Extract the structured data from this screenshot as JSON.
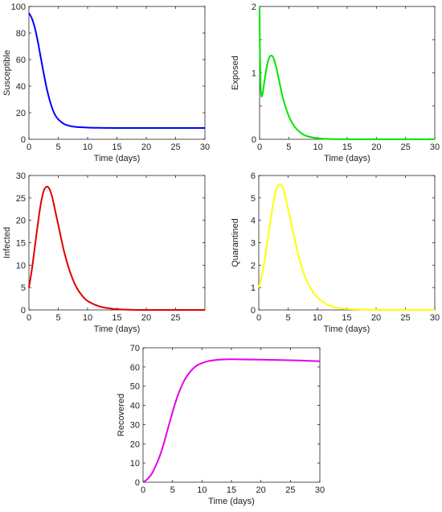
{
  "chart_data": [
    {
      "type": "line",
      "xlabel": "Time (days)",
      "ylabel": "Susceptible",
      "xlim": [
        0,
        30
      ],
      "ylim": [
        0,
        100
      ],
      "xticks": [
        0,
        5,
        10,
        15,
        20,
        25,
        30
      ],
      "yticks": [
        0,
        20,
        40,
        60,
        80,
        100
      ],
      "color": "#0000ff",
      "x": [
        0,
        0.5,
        1,
        1.5,
        2,
        2.5,
        3,
        3.5,
        4,
        4.5,
        5,
        6,
        7,
        8,
        9,
        10,
        12,
        15,
        20,
        25,
        30
      ],
      "values": [
        95,
        91,
        84,
        74,
        62,
        50,
        39,
        30,
        23,
        18,
        15,
        11.5,
        10,
        9.3,
        9,
        8.8,
        8.6,
        8.5,
        8.5,
        8.5,
        8.5
      ]
    },
    {
      "type": "line",
      "xlabel": "Time (days)",
      "ylabel": "Exposed",
      "xlim": [
        0,
        30
      ],
      "ylim": [
        0,
        2
      ],
      "xticks": [
        0,
        5,
        10,
        15,
        20,
        25,
        30
      ],
      "yticks": [
        0,
        0.5,
        1,
        1.5,
        2
      ],
      "ytick_labels": [
        "0",
        "",
        "1",
        "",
        "2"
      ],
      "color": "#00e600",
      "x": [
        0,
        0.05,
        0.15,
        0.3,
        0.5,
        0.8,
        1.2,
        1.6,
        2,
        2.4,
        2.8,
        3.3,
        4,
        5,
        6,
        7,
        8,
        10,
        12,
        15,
        20,
        30
      ],
      "values": [
        2.0,
        1.4,
        0.9,
        0.66,
        0.68,
        0.85,
        1.08,
        1.22,
        1.26,
        1.22,
        1.1,
        0.9,
        0.62,
        0.35,
        0.19,
        0.1,
        0.05,
        0.015,
        0.005,
        0.001,
        0,
        0
      ]
    },
    {
      "type": "line",
      "xlabel": "Time (days)",
      "ylabel": "Infected",
      "xlim": [
        0,
        30
      ],
      "ylim": [
        0,
        30
      ],
      "xticks": [
        0,
        5,
        10,
        15,
        20,
        25
      ],
      "yticks": [
        0,
        5,
        10,
        15,
        20,
        25,
        30
      ],
      "color": "#e00000",
      "x": [
        0,
        0.5,
        1,
        1.5,
        2,
        2.5,
        3,
        3.5,
        4,
        4.5,
        5,
        6,
        7,
        8,
        9,
        10,
        12,
        14,
        16,
        20,
        25,
        30
      ],
      "values": [
        5,
        9,
        14,
        19,
        23.5,
        26.5,
        27.5,
        27,
        25,
        22,
        19,
        13,
        8.5,
        5.3,
        3.3,
        2,
        0.8,
        0.3,
        0.1,
        0,
        0,
        0
      ]
    },
    {
      "type": "line",
      "xlabel": "Time (days)",
      "ylabel": "Quarantined",
      "xlim": [
        0,
        30
      ],
      "ylim": [
        0,
        6
      ],
      "xticks": [
        0,
        5,
        10,
        15,
        20,
        25,
        30
      ],
      "yticks": [
        0,
        1,
        2,
        3,
        4,
        5,
        6
      ],
      "color": "#ffff00",
      "x": [
        0,
        0.5,
        1,
        1.5,
        2,
        2.5,
        3,
        3.5,
        4,
        4.5,
        5,
        5.5,
        6,
        7,
        8,
        9,
        10,
        12,
        14,
        16,
        20,
        25,
        30
      ],
      "values": [
        1.0,
        1.5,
        2.2,
        3.1,
        4.0,
        4.8,
        5.4,
        5.6,
        5.5,
        5.1,
        4.5,
        3.9,
        3.3,
        2.2,
        1.4,
        0.9,
        0.55,
        0.2,
        0.07,
        0.03,
        0,
        0,
        0
      ]
    },
    {
      "type": "line",
      "xlabel": "Time (days)",
      "ylabel": "Recovered",
      "xlim": [
        0,
        30
      ],
      "ylim": [
        0,
        70
      ],
      "xticks": [
        0,
        5,
        10,
        15,
        20,
        25,
        30
      ],
      "yticks": [
        0,
        10,
        20,
        30,
        40,
        50,
        60,
        70
      ],
      "color": "#e600e6",
      "x": [
        0,
        0.5,
        1,
        1.5,
        2,
        2.5,
        3,
        3.5,
        4,
        4.5,
        5,
        5.5,
        6,
        7,
        8,
        9,
        10,
        11,
        12,
        13,
        15,
        20,
        25,
        30
      ],
      "values": [
        0,
        1,
        2.5,
        4.5,
        7.5,
        11,
        15,
        20,
        25.5,
        31,
        36.5,
        41.5,
        46,
        53,
        57.5,
        60.5,
        62,
        63,
        63.5,
        63.8,
        64,
        63.8,
        63.5,
        63
      ]
    }
  ]
}
